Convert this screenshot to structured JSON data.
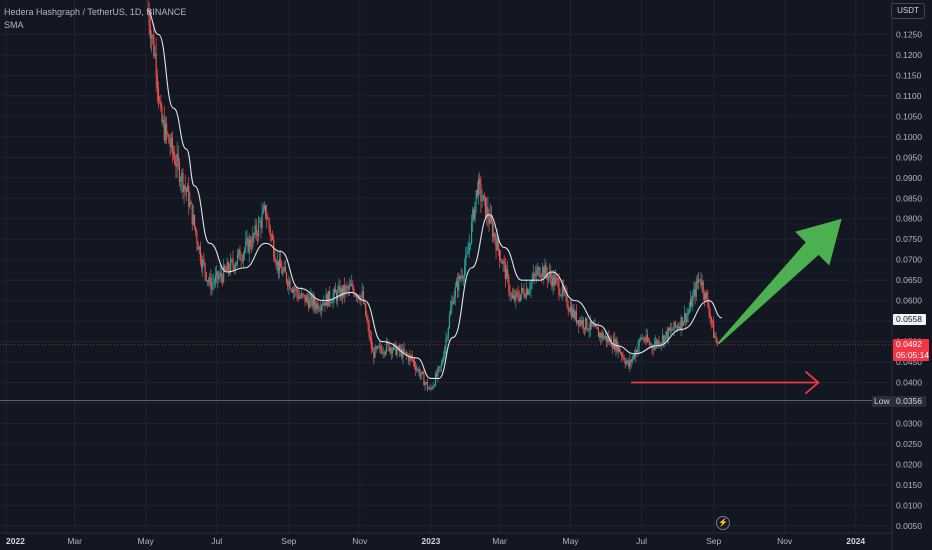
{
  "legend": {
    "symbol": "Hedera Hashgraph / TetherUS, 1D, BINANCE",
    "indicator": "SMA"
  },
  "currency": "USDT",
  "badges": {
    "sma_value": "0.0558",
    "last_price": "0.0492",
    "countdown": "05:05:14",
    "low_label": "Low",
    "low_value": "0.0356"
  },
  "icons": {
    "alert": "bolt-icon"
  },
  "colors": {
    "background": "#131722",
    "up": "#26a69a",
    "down": "#ef5350",
    "sma": "#e0e3eb",
    "arrow_green": "#4caf50",
    "arrow_red": "#f23645"
  },
  "chart_data": {
    "type": "candlestick",
    "y_axis": {
      "min": 0.004,
      "max": 0.131,
      "ticks": [
        "0.1250",
        "0.1200",
        "0.1150",
        "0.1100",
        "0.1050",
        "0.1000",
        "0.0950",
        "0.0900",
        "0.0850",
        "0.0800",
        "0.0750",
        "0.0700",
        "0.0650",
        "0.0600",
        "0.0550",
        "0.0500",
        "0.0450",
        "0.0400",
        "0.0350",
        "0.0300",
        "0.0250",
        "0.0200",
        "0.0150",
        "0.0100",
        "0.0050"
      ]
    },
    "x_axis": {
      "start": "2022-01-01",
      "end": "2024-01-15",
      "ticks": [
        {
          "label": "2022",
          "date": "2022-01-01",
          "year": true
        },
        {
          "label": "Mar",
          "date": "2022-03-01"
        },
        {
          "label": "May",
          "date": "2022-05-01"
        },
        {
          "label": "Jul",
          "date": "2022-07-01"
        },
        {
          "label": "Sep",
          "date": "2022-09-01"
        },
        {
          "label": "Nov",
          "date": "2022-11-01"
        },
        {
          "label": "2023",
          "date": "2023-01-01",
          "year": true
        },
        {
          "label": "Mar",
          "date": "2023-03-01"
        },
        {
          "label": "May",
          "date": "2023-05-01"
        },
        {
          "label": "Jul",
          "date": "2023-07-01"
        },
        {
          "label": "Sep",
          "date": "2023-09-01"
        },
        {
          "label": "Nov",
          "date": "2023-11-01"
        },
        {
          "label": "2024",
          "date": "2024-01-01",
          "year": true
        }
      ]
    },
    "price_path": [
      {
        "date": "2022-05-03",
        "price": 0.131
      },
      {
        "date": "2022-05-10",
        "price": 0.118
      },
      {
        "date": "2022-05-14",
        "price": 0.104
      },
      {
        "date": "2022-05-22",
        "price": 0.098
      },
      {
        "date": "2022-06-06",
        "price": 0.086
      },
      {
        "date": "2022-06-18",
        "price": 0.07
      },
      {
        "date": "2022-06-25",
        "price": 0.064
      },
      {
        "date": "2022-07-05",
        "price": 0.066
      },
      {
        "date": "2022-07-15",
        "price": 0.069
      },
      {
        "date": "2022-08-01",
        "price": 0.075
      },
      {
        "date": "2022-08-12",
        "price": 0.082
      },
      {
        "date": "2022-08-22",
        "price": 0.069
      },
      {
        "date": "2022-09-10",
        "price": 0.061
      },
      {
        "date": "2022-09-25",
        "price": 0.059
      },
      {
        "date": "2022-10-08",
        "price": 0.061
      },
      {
        "date": "2022-10-25",
        "price": 0.063
      },
      {
        "date": "2022-11-03",
        "price": 0.061
      },
      {
        "date": "2022-11-12",
        "price": 0.047
      },
      {
        "date": "2022-11-25",
        "price": 0.049
      },
      {
        "date": "2022-12-15",
        "price": 0.046
      },
      {
        "date": "2022-12-31",
        "price": 0.038
      },
      {
        "date": "2023-01-10",
        "price": 0.044
      },
      {
        "date": "2023-01-20",
        "price": 0.061
      },
      {
        "date": "2023-02-01",
        "price": 0.07
      },
      {
        "date": "2023-02-10",
        "price": 0.088
      },
      {
        "date": "2023-02-20",
        "price": 0.08
      },
      {
        "date": "2023-03-05",
        "price": 0.068
      },
      {
        "date": "2023-03-12",
        "price": 0.06
      },
      {
        "date": "2023-03-25",
        "price": 0.063
      },
      {
        "date": "2023-04-05",
        "price": 0.068
      },
      {
        "date": "2023-04-20",
        "price": 0.064
      },
      {
        "date": "2023-05-05",
        "price": 0.056
      },
      {
        "date": "2023-05-25",
        "price": 0.052
      },
      {
        "date": "2023-06-10",
        "price": 0.049
      },
      {
        "date": "2023-06-20",
        "price": 0.044
      },
      {
        "date": "2023-07-01",
        "price": 0.051
      },
      {
        "date": "2023-07-10",
        "price": 0.049
      },
      {
        "date": "2023-07-20",
        "price": 0.051
      },
      {
        "date": "2023-08-01",
        "price": 0.054
      },
      {
        "date": "2023-08-10",
        "price": 0.057
      },
      {
        "date": "2023-08-20",
        "price": 0.066
      },
      {
        "date": "2023-08-28",
        "price": 0.058
      },
      {
        "date": "2023-09-01",
        "price": 0.052
      },
      {
        "date": "2023-09-04",
        "price": 0.0492
      }
    ],
    "sma": [
      {
        "date": "2022-05-02",
        "value": 0.131
      },
      {
        "date": "2022-05-12",
        "value": 0.125
      },
      {
        "date": "2022-05-25",
        "value": 0.107
      },
      {
        "date": "2022-06-05",
        "value": 0.097
      },
      {
        "date": "2022-06-12",
        "value": 0.088
      },
      {
        "date": "2022-06-25",
        "value": 0.074
      },
      {
        "date": "2022-07-10",
        "value": 0.067
      },
      {
        "date": "2022-07-25",
        "value": 0.068
      },
      {
        "date": "2022-08-12",
        "value": 0.074
      },
      {
        "date": "2022-08-25",
        "value": 0.072
      },
      {
        "date": "2022-09-10",
        "value": 0.063
      },
      {
        "date": "2022-10-01",
        "value": 0.06
      },
      {
        "date": "2022-10-25",
        "value": 0.062
      },
      {
        "date": "2022-11-05",
        "value": 0.06
      },
      {
        "date": "2022-11-20",
        "value": 0.05
      },
      {
        "date": "2022-12-20",
        "value": 0.046
      },
      {
        "date": "2023-01-01",
        "value": 0.041
      },
      {
        "date": "2023-01-08",
        "value": 0.041
      },
      {
        "date": "2023-01-20",
        "value": 0.051
      },
      {
        "date": "2023-02-05",
        "value": 0.068
      },
      {
        "date": "2023-02-20",
        "value": 0.081
      },
      {
        "date": "2023-03-05",
        "value": 0.073
      },
      {
        "date": "2023-03-20",
        "value": 0.065
      },
      {
        "date": "2023-04-05",
        "value": 0.065
      },
      {
        "date": "2023-04-15",
        "value": 0.067
      },
      {
        "date": "2023-05-05",
        "value": 0.06
      },
      {
        "date": "2023-05-25",
        "value": 0.054
      },
      {
        "date": "2023-06-10",
        "value": 0.049
      },
      {
        "date": "2023-06-25",
        "value": 0.047
      },
      {
        "date": "2023-07-15",
        "value": 0.049
      },
      {
        "date": "2023-08-05",
        "value": 0.053
      },
      {
        "date": "2023-08-28",
        "value": 0.06
      },
      {
        "date": "2023-09-08",
        "value": 0.0558
      }
    ],
    "levels": {
      "last_price": 0.0492,
      "low": 0.0356
    },
    "drawings": {
      "green_arrow": {
        "from": {
          "date": "2023-09-05",
          "price": 0.0495
        },
        "to": {
          "date": "2023-12-20",
          "price": 0.08
        }
      },
      "red_arrow": {
        "from": {
          "date": "2023-06-22",
          "price": 0.04
        },
        "to": {
          "date": "2023-11-30",
          "price": 0.04
        }
      }
    }
  }
}
